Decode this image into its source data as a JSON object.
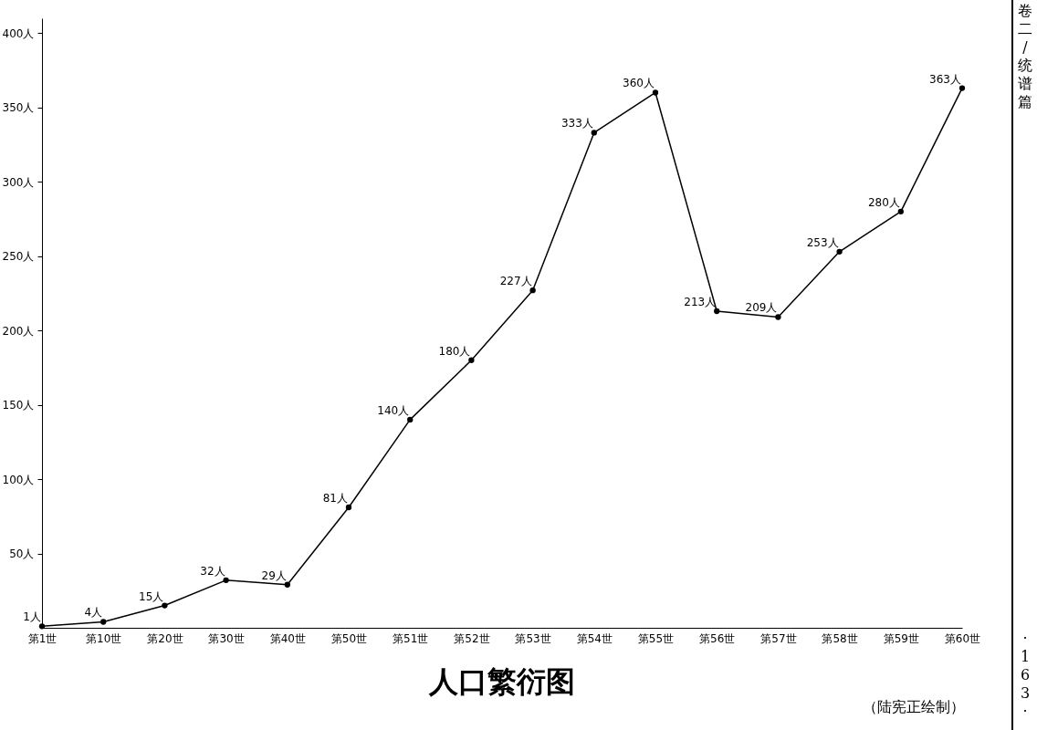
{
  "chart_data": {
    "type": "line",
    "title": "人口繁衍图",
    "categories": [
      "第1世",
      "第10世",
      "第20世",
      "第30世",
      "第40世",
      "第50世",
      "第51世",
      "第52世",
      "第53世",
      "第54世",
      "第55世",
      "第56世",
      "第57世",
      "第58世",
      "第59世",
      "第60世"
    ],
    "series": [
      {
        "color": "#000000",
        "values": [
          1,
          4,
          15,
          32,
          29,
          81,
          140,
          180,
          227,
          333,
          360,
          213,
          209,
          253,
          280,
          363
        ],
        "value_labels": [
          "1人",
          "4人",
          "15人",
          "32人",
          "29人",
          "81人",
          "140人",
          "180人",
          "227人",
          "333人",
          "360人",
          "213人",
          "209人",
          "253人",
          "280人",
          "363人"
        ]
      }
    ],
    "ylim": [
      0,
      410
    ],
    "yticks": [
      {
        "value": 50,
        "label": "50人"
      },
      {
        "value": 100,
        "label": "100人"
      },
      {
        "value": 150,
        "label": "150人"
      },
      {
        "value": 200,
        "label": "200人"
      },
      {
        "value": 250,
        "label": "250人"
      },
      {
        "value": 300,
        "label": "300人"
      },
      {
        "value": 350,
        "label": "350人"
      },
      {
        "value": 400,
        "label": "400人"
      }
    ],
    "grid": false,
    "marker": "circle",
    "line_style": "solid",
    "legend": false,
    "annotations": [
      "（陆宪正绘制）",
      "卷二/统谱篇",
      "·163·"
    ]
  }
}
